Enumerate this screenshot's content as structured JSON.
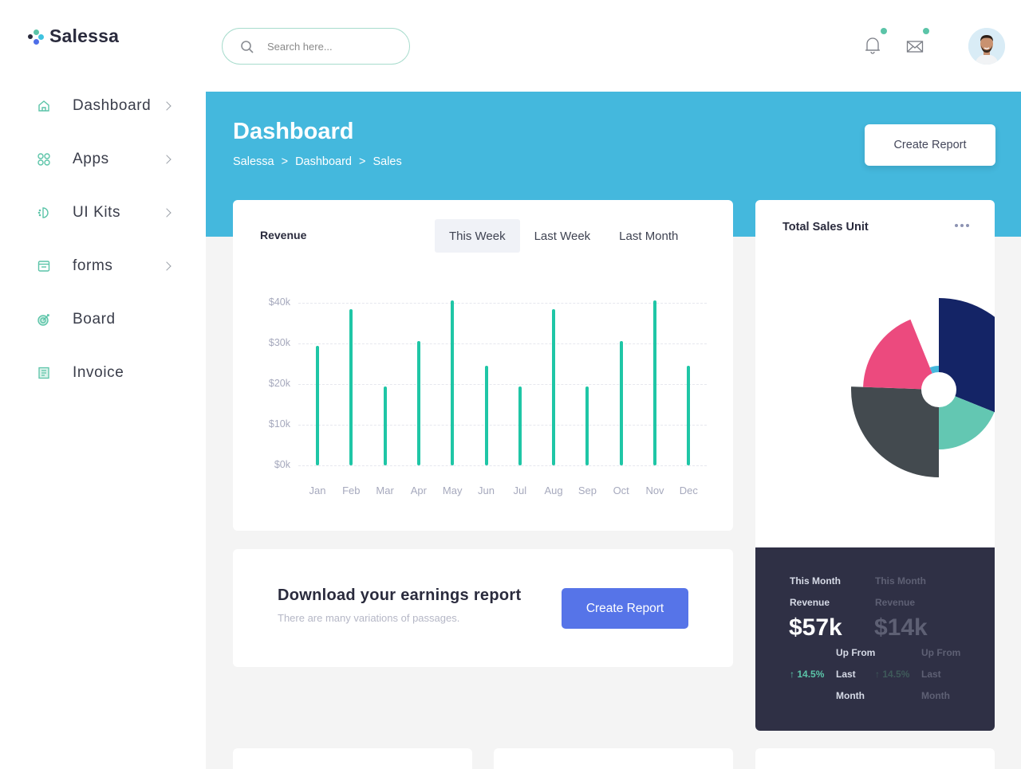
{
  "app": {
    "brand": "Salessa",
    "colors": {
      "primary_teal": "#1fc6a6",
      "banner_blue": "#44b8dd",
      "button_blue": "#5674e8",
      "dark_panel": "#2f3045",
      "accent_green": "#5bc4a8"
    }
  },
  "sidebar": {
    "items": [
      {
        "label": "Dashboard",
        "icon": "home-icon",
        "has_chevron": true
      },
      {
        "label": "Apps",
        "icon": "apps-grid-icon",
        "has_chevron": true
      },
      {
        "label": "UI Kits",
        "icon": "ui-kits-icon",
        "has_chevron": true
      },
      {
        "label": "forms",
        "icon": "forms-icon",
        "has_chevron": true
      },
      {
        "label": "Board",
        "icon": "target-icon",
        "has_chevron": false
      },
      {
        "label": "Invoice",
        "icon": "invoice-icon",
        "has_chevron": false
      }
    ]
  },
  "header": {
    "search_placeholder": "Search here...",
    "notifications": {
      "icon": "bell-icon",
      "has_badge": true
    },
    "messages": {
      "icon": "mail-icon",
      "has_badge": true
    },
    "avatar": "user-avatar"
  },
  "banner": {
    "title": "Dashboard",
    "breadcrumb": [
      "Salessa",
      ">",
      "Dashboard",
      ">",
      "Sales"
    ],
    "create_report_label": "Create Report"
  },
  "revenue": {
    "title": "Revenue",
    "tabs": [
      {
        "label": "This Week",
        "active": true
      },
      {
        "label": "Last Week",
        "active": false
      },
      {
        "label": "Last Month",
        "active": false
      }
    ]
  },
  "chart_data": [
    {
      "type": "bar",
      "title": "Revenue",
      "categories": [
        "Jan",
        "Feb",
        "Mar",
        "Apr",
        "May",
        "Jun",
        "Jul",
        "Aug",
        "Sep",
        "Oct",
        "Nov",
        "Dec"
      ],
      "values": [
        29500,
        38500,
        19500,
        30500,
        40500,
        24500,
        19500,
        38500,
        19500,
        30500,
        40500,
        24500
      ],
      "y_ticks": [
        "$0k",
        "$10k",
        "$20k",
        "$30k",
        "$40k"
      ],
      "xlabel": "",
      "ylabel": "",
      "ylim": [
        0,
        40000
      ],
      "grid": true,
      "color": "#1fc6a6"
    },
    {
      "type": "pie",
      "title": "Total Sales Unit",
      "subtype": "polar-area",
      "segments": [
        {
          "color": "#142466",
          "start_deg": 0,
          "end_deg": 112,
          "radius": 115
        },
        {
          "color": "#63c7b2",
          "start_deg": 112,
          "end_deg": 180,
          "radius": 75
        },
        {
          "color": "#434a4f",
          "start_deg": 180,
          "end_deg": 272,
          "radius": 110
        },
        {
          "color": "#ec4a7e",
          "start_deg": 272,
          "end_deg": 338,
          "radius": 95
        },
        {
          "color": "#44b8dd",
          "start_deg": 338,
          "end_deg": 360,
          "radius": 30
        }
      ]
    }
  ],
  "download": {
    "title": "Download your earnings report",
    "subtitle": "There are many variations of passages.",
    "button_label": "Create Report"
  },
  "sales_unit": {
    "title": "Total Sales Unit",
    "menu_icon": "more-horizontal-icon",
    "stats": [
      {
        "period": "This Month",
        "label": "Revenue",
        "value": "$57k",
        "up_label": "Up From",
        "change": "14.5%",
        "last": "Last",
        "month": "Month",
        "active": true
      },
      {
        "period": "This Month",
        "label": "Revenue",
        "value": "$14k",
        "up_label": "Up From",
        "change": "14.5%",
        "last": "Last",
        "month": "Month",
        "active": false
      }
    ]
  }
}
